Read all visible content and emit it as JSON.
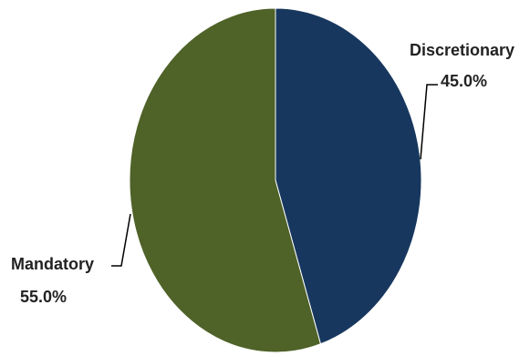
{
  "chart_data": {
    "type": "pie",
    "title": "",
    "slices": [
      {
        "name": "Discretionary",
        "label": "Discretionary",
        "value": 45.0,
        "value_label": "45.0%",
        "color": "#17375e"
      },
      {
        "name": "Mandatory",
        "label": "Mandatory",
        "value": 55.0,
        "value_label": "55.0%",
        "color": "#4f6228"
      }
    ],
    "legend": "none",
    "label_style": "outside with leader lines"
  }
}
